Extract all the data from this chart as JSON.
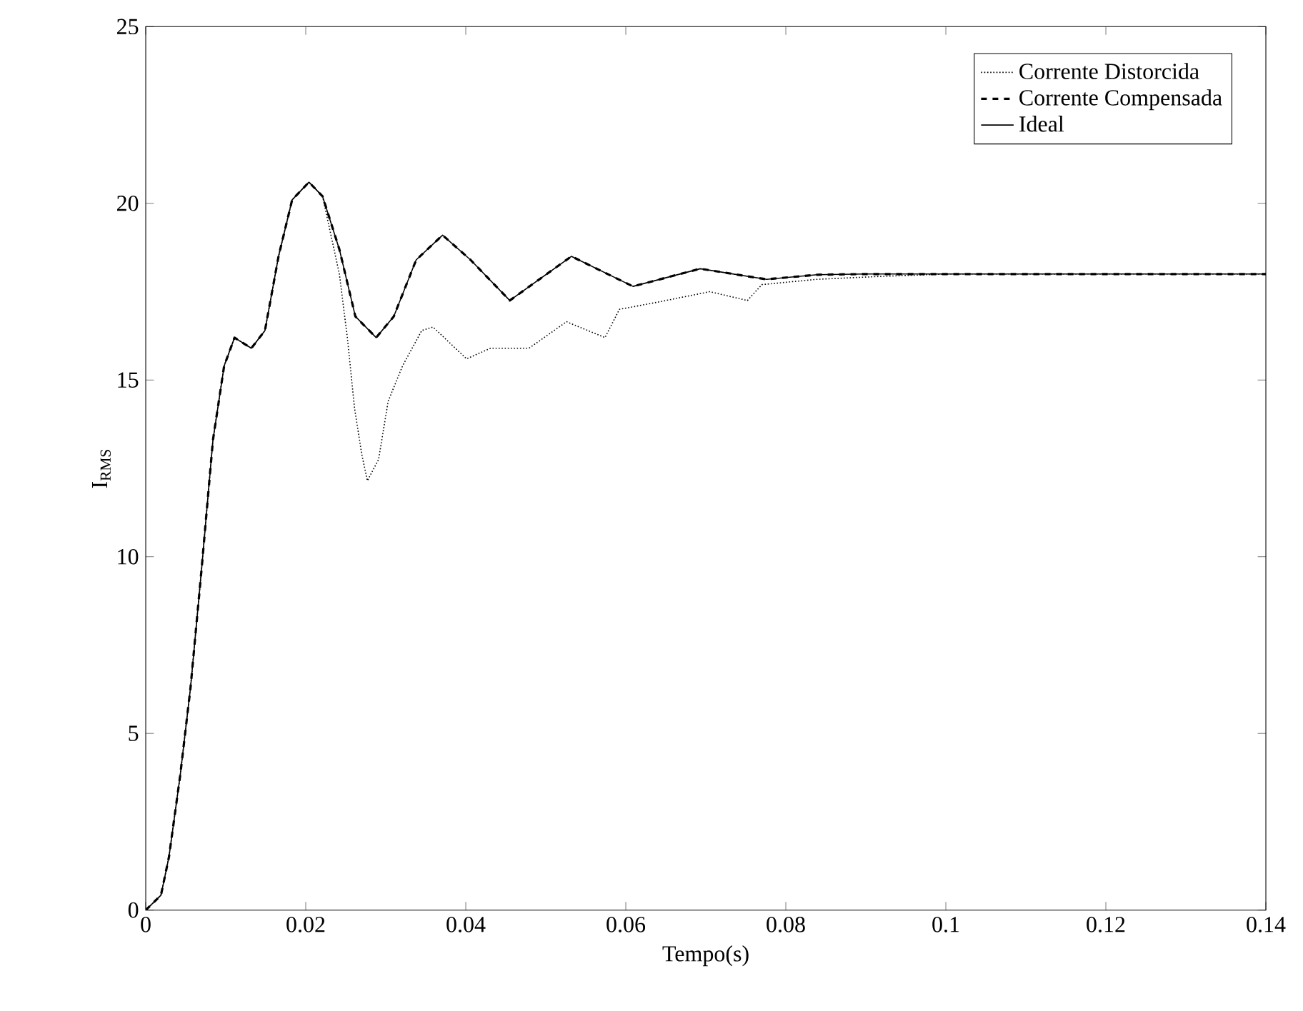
{
  "chart_data": {
    "type": "line",
    "xlabel": "Tempo(s)",
    "ylabel": "I$_{RMS}$",
    "xlim": [
      0,
      0.14
    ],
    "ylim": [
      0,
      25
    ],
    "xticks": [
      0,
      0.02,
      0.04,
      0.06,
      0.08,
      0.1,
      0.12,
      0.14
    ],
    "yticks": [
      0,
      5,
      10,
      15,
      20,
      25
    ],
    "legend": "top right",
    "series": [
      {
        "name": "Corrente Distorcida",
        "color": "#000000",
        "line_style": "dotted",
        "x": [
          0,
          0.0019,
          0.0029,
          0.0043,
          0.0056,
          0.007,
          0.0084,
          0.0098,
          0.0111,
          0.0132,
          0.0149,
          0.0166,
          0.0183,
          0.0204,
          0.0221,
          0.0242,
          0.0252,
          0.0261,
          0.027,
          0.0277,
          0.0291,
          0.0303,
          0.0321,
          0.0345,
          0.0359,
          0.0401,
          0.0431,
          0.0479,
          0.0526,
          0.0574,
          0.0592,
          0.0639,
          0.0705,
          0.0752,
          0.077,
          0.0839,
          0.0916,
          0.1,
          0.11,
          0.12,
          0.13,
          0.14
        ],
        "values": [
          0,
          0.42,
          1.5,
          3.8,
          6.3,
          9.7,
          13.3,
          15.4,
          16.2,
          15.9,
          16.4,
          18.5,
          20.1,
          20.6,
          20.2,
          18.0,
          16.2,
          14.2,
          12.9,
          12.15,
          12.75,
          14.4,
          15.4,
          16.4,
          16.5,
          15.6,
          15.9,
          15.9,
          16.65,
          16.2,
          17.0,
          17.2,
          17.5,
          17.25,
          17.7,
          17.85,
          17.93,
          18.0,
          18.0,
          18.0,
          18.0,
          18.0
        ]
      },
      {
        "name": "Corrente Compensada",
        "color": "#000000",
        "line_style": "dashed",
        "x": [
          0,
          0.0019,
          0.0029,
          0.0043,
          0.0056,
          0.007,
          0.0084,
          0.0098,
          0.0111,
          0.0132,
          0.0149,
          0.0166,
          0.0183,
          0.0204,
          0.0221,
          0.0242,
          0.0262,
          0.0288,
          0.031,
          0.0338,
          0.0371,
          0.0406,
          0.0455,
          0.0532,
          0.0609,
          0.0693,
          0.0776,
          0.0839,
          0.09,
          0.1,
          0.11,
          0.12,
          0.13,
          0.14
        ],
        "values": [
          0,
          0.42,
          1.5,
          3.8,
          6.3,
          9.7,
          13.3,
          15.4,
          16.2,
          15.9,
          16.4,
          18.5,
          20.1,
          20.6,
          20.2,
          18.7,
          16.8,
          16.2,
          16.8,
          18.4,
          19.1,
          18.4,
          17.25,
          18.5,
          17.65,
          18.15,
          17.85,
          17.98,
          18.0,
          18.0,
          18.0,
          18.0,
          18.0,
          18.0
        ]
      },
      {
        "name": "Ideal",
        "color": "#000000",
        "line_style": "solid",
        "x": [
          0,
          0.0019,
          0.0029,
          0.0043,
          0.0056,
          0.007,
          0.0084,
          0.0098,
          0.0111,
          0.0132,
          0.0149,
          0.0166,
          0.0183,
          0.0204,
          0.0221,
          0.0242,
          0.0262,
          0.0288,
          0.031,
          0.0338,
          0.0371,
          0.0406,
          0.0455,
          0.0532,
          0.0609,
          0.0693,
          0.0776,
          0.0839,
          0.09,
          0.1,
          0.11,
          0.12,
          0.13,
          0.14
        ],
        "values": [
          0,
          0.42,
          1.5,
          3.8,
          6.3,
          9.7,
          13.3,
          15.4,
          16.2,
          15.9,
          16.4,
          18.5,
          20.1,
          20.6,
          20.2,
          18.7,
          16.8,
          16.2,
          16.8,
          18.4,
          19.1,
          18.4,
          17.25,
          18.5,
          17.65,
          18.15,
          17.85,
          17.98,
          18.0,
          18.0,
          18.0,
          18.0,
          18.0,
          18.0
        ]
      }
    ]
  }
}
